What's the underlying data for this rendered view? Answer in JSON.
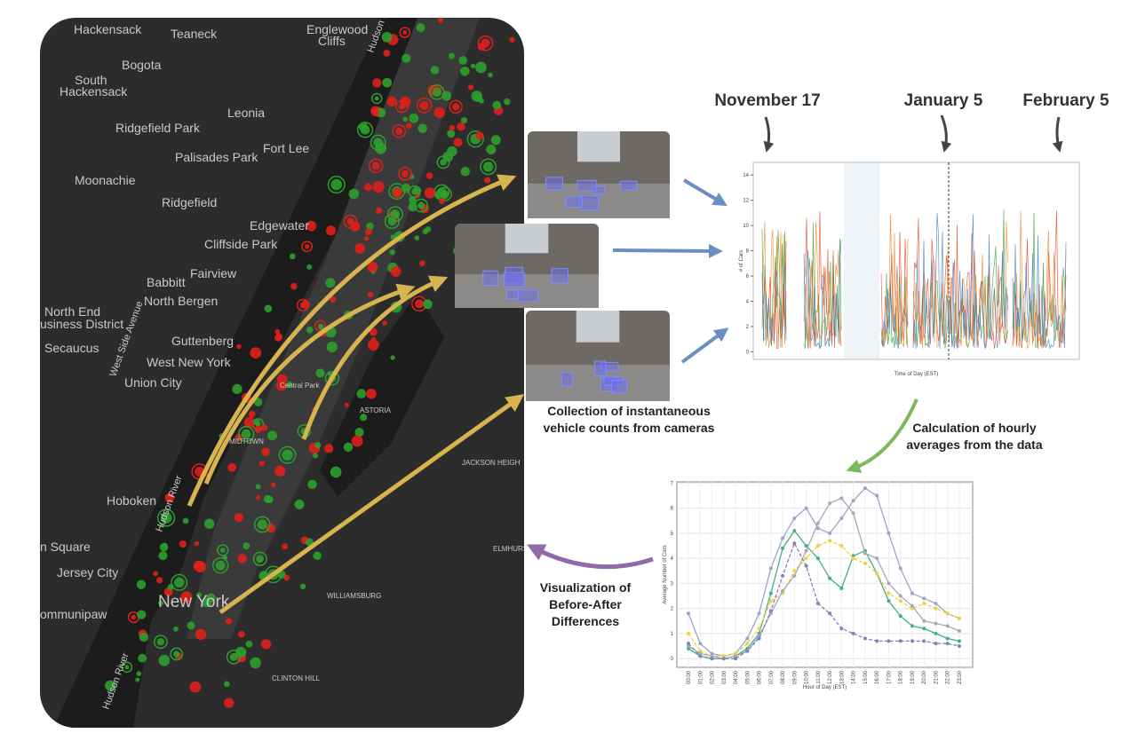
{
  "map": {
    "labels": [
      "Hackensack",
      "Teaneck",
      "Englewood",
      "Cliffs",
      "Bogota",
      "South",
      "Hackensack",
      "Ridgefield Park",
      "Leonia",
      "Fort Lee",
      "Palisades Park",
      "Moonachie",
      "Ridgefield",
      "Edgewater",
      "Cliffside Park",
      "Fairview",
      "Babbitt",
      "North Bergen",
      "North End",
      "usiness District",
      "Secaucus",
      "Guttenberg",
      "West New York",
      "Union City",
      "Hoboken",
      "n Square",
      "Jersey City",
      "New York",
      "ommunipaw",
      "Hudson River",
      "Hudson River",
      "Hudson River",
      "West Side Avenue",
      "Central Park",
      "ASTORIA",
      "JACKSON HEIGH",
      "ELMHURST",
      "WILLIAMSBURG",
      "CLINTON HILL",
      "MIDTOWN"
    ]
  },
  "dates": [
    "November 17",
    "January 5",
    "February 5"
  ],
  "captions": {
    "cameras": [
      "Collection of instantaneous",
      "vehicle counts from cameras"
    ],
    "averages": [
      "Calculation of hourly",
      "averages from the data"
    ],
    "visualization": [
      "Visualization of",
      "Before-After",
      "Differences"
    ]
  },
  "chart_data": [
    {
      "type": "line",
      "ylabel": "# of Cars",
      "xlabel": "Time of Day (EST)",
      "ylim": [
        -0.6,
        15
      ],
      "yticks": [
        0,
        2,
        4,
        6,
        8,
        10,
        12,
        14
      ]
    },
    {
      "type": "line",
      "ylabel": "Average Number of Cars",
      "xlabel": "Hour of Day (EST)",
      "categories": [
        "00:00",
        "01:00",
        "02:00",
        "03:00",
        "04:00",
        "05:00",
        "06:00",
        "07:00",
        "08:00",
        "09:00",
        "10:00",
        "11:00",
        "12:00",
        "13:00",
        "14:00",
        "15:00",
        "16:00",
        "17:00",
        "18:00",
        "19:00",
        "20:00",
        "21:00",
        "22:00",
        "23:00"
      ],
      "ylim": [
        -0.35,
        7.05
      ],
      "yticks": [
        0,
        1,
        2,
        3,
        4,
        5,
        6,
        7
      ],
      "grid": true,
      "series": [
        {
          "color": "#9aa6c8",
          "values": [
            1.8,
            0.6,
            0.2,
            0.1,
            0.2,
            0.8,
            1.8,
            3.6,
            4.8,
            5.6,
            6.0,
            5.2,
            5.0,
            5.6,
            6.3,
            6.8,
            6.5,
            5.0,
            3.6,
            2.6,
            2.4,
            2.2,
            1.8,
            1.6
          ]
        },
        {
          "color": "#41ae8c",
          "values": [
            0.4,
            0.1,
            0.0,
            0.0,
            0.1,
            0.4,
            1.0,
            2.6,
            4.4,
            5.1,
            4.5,
            4.0,
            3.2,
            2.8,
            4.1,
            4.3,
            3.4,
            2.3,
            1.7,
            1.3,
            1.2,
            1.0,
            0.8,
            0.7
          ]
        },
        {
          "color": "#f0d23c",
          "values": [
            1.0,
            0.3,
            0.1,
            0.1,
            0.2,
            0.6,
            1.2,
            2.3,
            2.6,
            3.5,
            4.0,
            4.5,
            4.7,
            4.5,
            4.0,
            3.8,
            3.4,
            2.6,
            2.3,
            2.0,
            2.2,
            2.0,
            1.8,
            1.6
          ]
        },
        {
          "color": "#a9a9b6",
          "values": [
            0.5,
            0.2,
            0.1,
            0.0,
            0.1,
            0.3,
            0.9,
            1.8,
            2.7,
            3.3,
            4.3,
            5.4,
            6.2,
            6.4,
            5.8,
            4.2,
            4.0,
            3.0,
            2.5,
            2.1,
            1.5,
            1.4,
            1.3,
            1.1
          ]
        },
        {
          "color": "#7b86b8",
          "values": [
            0.6,
            0.1,
            0.0,
            0.0,
            0.0,
            0.3,
            0.8,
            1.9,
            3.3,
            4.6,
            3.7,
            2.2,
            1.8,
            1.2,
            1.0,
            0.8,
            0.7,
            0.7,
            0.7,
            0.7,
            0.7,
            0.6,
            0.6,
            0.5
          ]
        }
      ]
    }
  ]
}
